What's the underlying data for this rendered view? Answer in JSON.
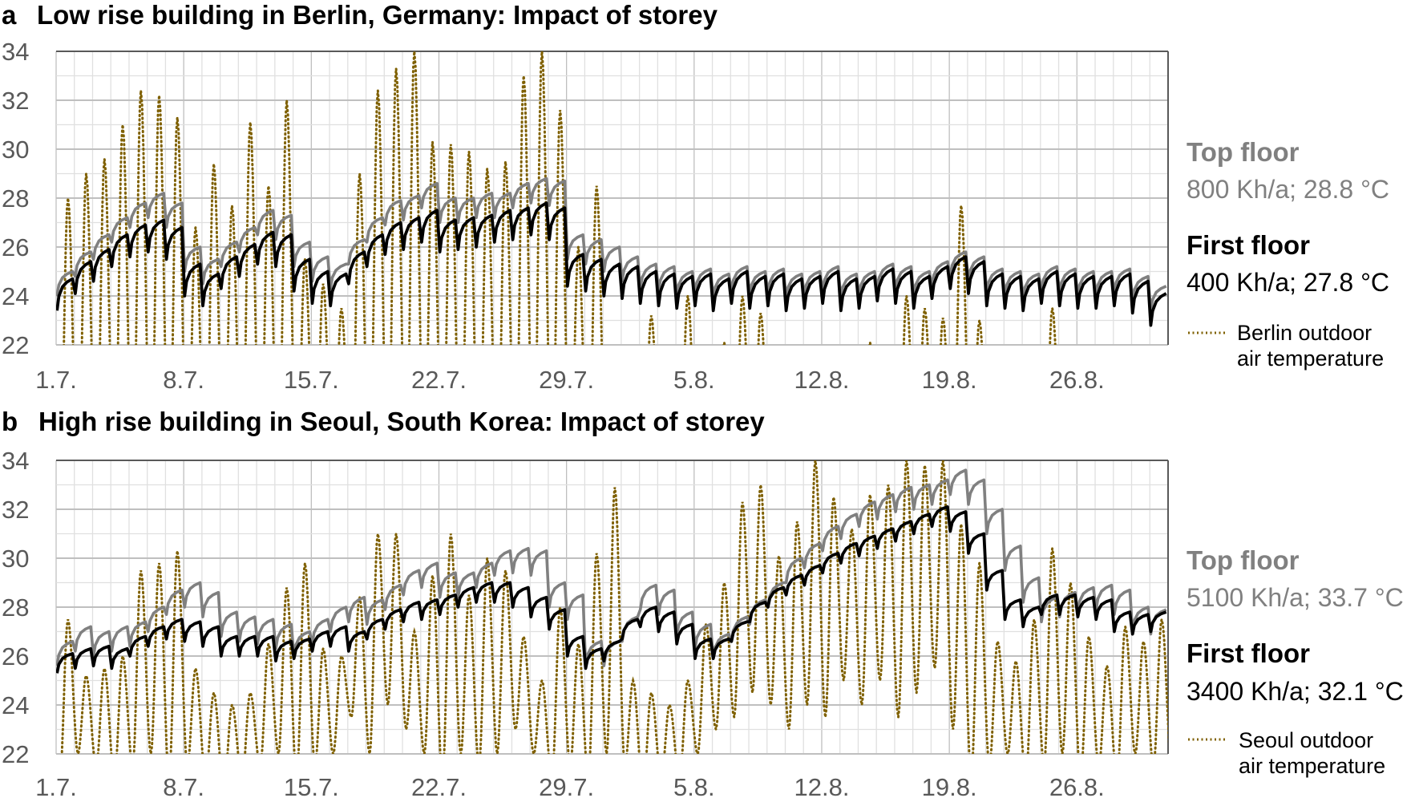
{
  "colors": {
    "top_floor": "#808080",
    "first_floor": "#000000",
    "outdoor": "#7F6000",
    "grid_minor": "#e0e0e0",
    "grid_major": "#bfbfbf",
    "tick_text": "#595959"
  },
  "chart_data": [
    {
      "type": "line",
      "panel_letter": "a",
      "title": "Low rise building in Berlin, Germany: Impact of storey",
      "xlabel": "",
      "ylabel": "",
      "x_unit": "days since 1 July",
      "xlim": [
        0,
        61
      ],
      "ylim": [
        22,
        34
      ],
      "yticks": [
        "22",
        "24",
        "26",
        "28",
        "30",
        "32",
        "34"
      ],
      "xticks": [
        {
          "day": 0,
          "label": "1.7."
        },
        {
          "day": 7,
          "label": "8.7."
        },
        {
          "day": 14,
          "label": "15.7."
        },
        {
          "day": 21,
          "label": "22.7."
        },
        {
          "day": 28,
          "label": "29.7."
        },
        {
          "day": 35,
          "label": "5.8."
        },
        {
          "day": 42,
          "label": "12.8."
        },
        {
          "day": 49,
          "label": "19.8."
        },
        {
          "day": 56,
          "label": "26.8."
        }
      ],
      "grid": true,
      "legend_position": "right",
      "legend": {
        "top_floor": {
          "name": "Top floor",
          "value": "800 Kh/a; 28.8 °C"
        },
        "first_floor": {
          "name": "First floor",
          "value": "400 Kh/a; 27.8 °C"
        },
        "outdoor": {
          "line1": "Berlin outdoor",
          "line2": "air temperature"
        }
      },
      "series": [
        {
          "name": "Top floor",
          "style": "solid-gray",
          "daily_swing": 1.0,
          "daily_max": [
            25.0,
            25.8,
            26.5,
            27.2,
            27.8,
            28.2,
            27.8,
            26.0,
            25.5,
            26.2,
            26.8,
            27.5,
            27.3,
            26.2,
            25.6,
            25.3,
            26.3,
            27.2,
            27.9,
            28.1,
            28.6,
            28.0,
            28.0,
            28.2,
            28.2,
            28.6,
            28.8,
            28.7,
            26.5,
            26.3,
            26.0,
            25.6,
            25.3,
            25.2,
            25.0,
            25.1,
            24.9,
            25.2,
            25.0,
            25.1,
            24.9,
            25.0,
            25.2,
            24.9,
            25.0,
            25.3,
            25.2,
            25.0,
            25.4,
            25.8,
            25.6,
            25.1,
            25.0,
            24.9,
            25.2,
            25.1,
            25.0,
            25.0,
            25.1,
            24.8,
            24.4
          ]
        },
        {
          "name": "First floor",
          "style": "solid-black",
          "daily_swing": 1.3,
          "daily_max": [
            24.7,
            25.4,
            25.9,
            26.5,
            26.9,
            27.1,
            26.8,
            25.3,
            24.9,
            25.6,
            26.1,
            26.6,
            26.5,
            25.5,
            25.0,
            24.9,
            25.8,
            26.5,
            27.0,
            27.2,
            27.5,
            27.1,
            27.2,
            27.3,
            27.5,
            27.6,
            27.8,
            27.6,
            25.7,
            25.5,
            25.3,
            25.2,
            25.0,
            24.9,
            24.8,
            24.9,
            24.7,
            25.0,
            24.8,
            24.9,
            24.7,
            24.8,
            25.0,
            24.7,
            24.8,
            25.1,
            25.0,
            24.8,
            25.2,
            25.6,
            25.4,
            24.9,
            24.8,
            24.7,
            25.0,
            24.9,
            24.8,
            24.8,
            24.9,
            24.6,
            24.1
          ]
        },
        {
          "name": "Berlin outdoor air temperature",
          "style": "dotted-olive",
          "daily_max": [
            28.0,
            29.0,
            29.6,
            31.0,
            32.4,
            32.2,
            31.3,
            26.8,
            29.4,
            27.7,
            31.1,
            28.5,
            32.0,
            25.5,
            24.5,
            23.5,
            29.0,
            32.4,
            33.3,
            34.0,
            30.3,
            30.2,
            29.9,
            29.2,
            29.5,
            33.0,
            34.0,
            31.6,
            26.0,
            28.5,
            21.5,
            21.8,
            23.2,
            21.0,
            24.0,
            21.5,
            22.1,
            24.0,
            23.3,
            21.0,
            20.5,
            21.0,
            20.8,
            21.5,
            22.1,
            21.0,
            24.0,
            23.5,
            23.1,
            27.7,
            23.0,
            21.0,
            21.5,
            20.5,
            23.5,
            21.0,
            20.8,
            21.0,
            20.5,
            21.0,
            20.0
          ],
          "daily_min": [
            16,
            16,
            16,
            16,
            16,
            16,
            16,
            16,
            16,
            16,
            16,
            16,
            16,
            16,
            16,
            16,
            16,
            16,
            16,
            16,
            16,
            16,
            16,
            16,
            16,
            16,
            16,
            16,
            16,
            16,
            16,
            16,
            16,
            16,
            16,
            16,
            16,
            16,
            16,
            16,
            16,
            16,
            16,
            16,
            16,
            16,
            16,
            16,
            16,
            16,
            16,
            16,
            16,
            16,
            16,
            16,
            16,
            16,
            16,
            16,
            16
          ]
        }
      ]
    },
    {
      "type": "line",
      "panel_letter": "b",
      "title": "High rise building in Seoul, South Korea: Impact of storey",
      "xlabel": "",
      "ylabel": "",
      "x_unit": "days since 1 July",
      "xlim": [
        0,
        61
      ],
      "ylim": [
        22,
        34
      ],
      "yticks": [
        "22",
        "24",
        "26",
        "28",
        "30",
        "32",
        "34"
      ],
      "xticks": [
        {
          "day": 0,
          "label": "1.7."
        },
        {
          "day": 7,
          "label": "8.7."
        },
        {
          "day": 14,
          "label": "15.7."
        },
        {
          "day": 21,
          "label": "22.7."
        },
        {
          "day": 28,
          "label": "29.7."
        },
        {
          "day": 35,
          "label": "5.8."
        },
        {
          "day": 42,
          "label": "12.8."
        },
        {
          "day": 49,
          "label": "19.8."
        },
        {
          "day": 56,
          "label": "26.8."
        }
      ],
      "grid": true,
      "legend_position": "right",
      "legend": {
        "top_floor": {
          "name": "Top floor",
          "value": "5100 Kh/a; 33.7 °C"
        },
        "first_floor": {
          "name": "First floor",
          "value": "3400 Kh/a; 32.1 °C"
        },
        "outdoor": {
          "line1": "Seoul outdoor",
          "line2": "air temperature"
        }
      },
      "series": [
        {
          "name": "Top floor",
          "style": "solid-gray",
          "daily_swing": 1.0,
          "daily_max": [
            26.6,
            27.2,
            27.0,
            27.2,
            27.4,
            28.0,
            28.7,
            29.0,
            28.6,
            27.8,
            27.6,
            27.5,
            27.3,
            27.0,
            27.5,
            28.0,
            28.4,
            28.3,
            28.9,
            29.5,
            29.8,
            29.4,
            29.4,
            29.8,
            30.3,
            30.4,
            30.3,
            29.0,
            28.5,
            26.6,
            26.6,
            27.6,
            28.9,
            28.7,
            27.8,
            27.3,
            26.9,
            27.6,
            28.3,
            29.0,
            30.0,
            30.6,
            31.3,
            31.8,
            32.3,
            32.6,
            32.9,
            33.0,
            33.2,
            33.6,
            33.2,
            32.0,
            30.5,
            29.2,
            28.4,
            28.6,
            28.8,
            28.9,
            28.7,
            28.0,
            27.9
          ]
        },
        {
          "name": "First floor",
          "style": "solid-black",
          "daily_swing": 0.8,
          "daily_max": [
            26.1,
            26.3,
            26.4,
            26.3,
            26.8,
            27.2,
            27.5,
            27.4,
            27.2,
            26.8,
            26.8,
            26.8,
            26.6,
            26.7,
            27.0,
            27.2,
            27.0,
            27.5,
            27.9,
            28.2,
            28.3,
            28.5,
            28.8,
            29.0,
            29.0,
            28.8,
            28.4,
            27.9,
            26.8,
            26.3,
            26.6,
            27.5,
            28.0,
            27.8,
            27.3,
            26.7,
            26.7,
            27.4,
            28.2,
            28.8,
            29.3,
            29.7,
            30.2,
            30.6,
            30.9,
            31.2,
            31.5,
            31.8,
            32.1,
            31.9,
            31.0,
            29.5,
            28.3,
            28.0,
            28.5,
            28.5,
            28.4,
            28.3,
            27.8,
            27.7,
            27.8
          ]
        },
        {
          "name": "Seoul outdoor air temperature",
          "style": "dotted-olive",
          "daily_max": [
            27.5,
            25.2,
            25.5,
            26,
            29.5,
            29.8,
            30.3,
            25.5,
            24.5,
            24,
            24.5,
            26.5,
            28.8,
            29.8,
            26.3,
            26,
            28.4,
            31,
            31,
            27,
            29.3,
            31,
            28.5,
            30,
            29.5,
            26.8,
            25,
            28,
            26.5,
            30.2,
            32.9,
            25,
            24.5,
            24,
            25,
            27.3,
            29,
            32.3,
            33,
            30.1,
            31.5,
            34,
            32.5,
            31.2,
            32.6,
            33,
            34,
            33.8,
            34,
            31.4,
            29.8,
            26.6,
            25.8,
            27.5,
            30.4,
            29,
            26.8,
            25.6,
            27.2,
            26.6,
            27.5
          ],
          "daily_min": [
            21,
            22,
            21.5,
            21,
            21.5,
            22,
            21,
            21.5,
            21,
            20.5,
            21,
            21.5,
            22,
            21,
            21.5,
            22,
            23.5,
            22,
            24,
            23,
            22,
            21,
            22,
            21.5,
            22,
            23,
            22,
            21,
            21.5,
            21,
            22,
            21.5,
            20.5,
            21,
            21,
            22,
            23,
            23.5,
            24.5,
            24,
            23,
            24,
            23.5,
            25,
            24,
            25,
            23.5,
            24.5,
            25.5,
            23,
            21,
            21.5,
            22,
            21,
            21.5,
            22,
            21,
            21.5,
            21,
            22,
            21.5
          ]
        }
      ]
    }
  ]
}
